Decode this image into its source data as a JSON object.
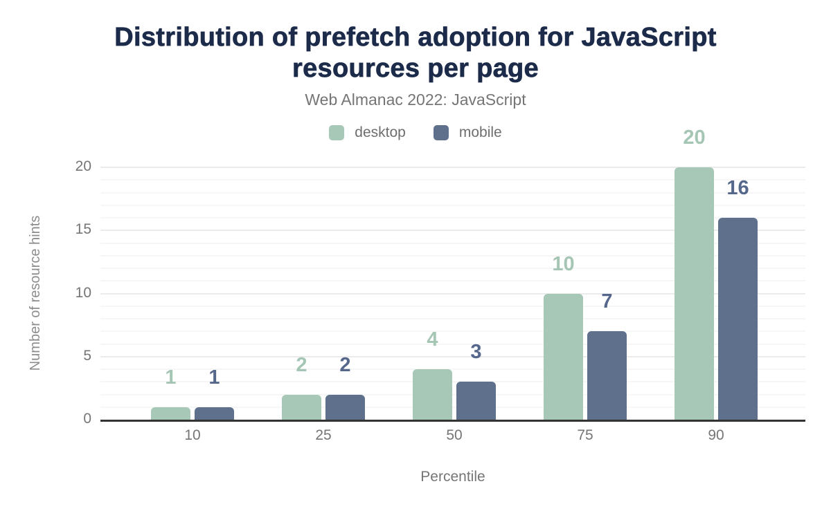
{
  "title": "Distribution of prefetch adoption for JavaScript resources per page",
  "title_lines": [
    "Distribution of prefetch adoption for JavaScript",
    "resources per page"
  ],
  "subtitle": "Web Almanac 2022: JavaScript",
  "legend": {
    "items": [
      {
        "label": "desktop",
        "color": "#a7c8b6"
      },
      {
        "label": "mobile",
        "color": "#5f708c"
      }
    ]
  },
  "chart_data": {
    "type": "bar",
    "title": "Distribution of prefetch adoption for JavaScript resources per page",
    "subtitle": "Web Almanac 2022: JavaScript",
    "categories": [
      "10",
      "25",
      "50",
      "75",
      "90"
    ],
    "series": [
      {
        "name": "desktop",
        "color": "#a7c8b6",
        "label_color": "#a5c6b4",
        "values": [
          1,
          2,
          4,
          10,
          20
        ]
      },
      {
        "name": "mobile",
        "color": "#5f708c",
        "label_color": "#55678b",
        "values": [
          1,
          2,
          3,
          7,
          16
        ]
      }
    ],
    "xlabel": "Percentile",
    "ylabel": "Number of resource hints",
    "ylim": [
      0,
      20
    ],
    "yticks": [
      0,
      5,
      10,
      15,
      20
    ],
    "grid": {
      "orientation": "horizontal",
      "minor_step": 1,
      "major_step": 5
    },
    "legend_position": "top",
    "bar_value_labels": true
  },
  "colors": {
    "title": "#1c2b4a",
    "subtitle": "#757575",
    "axis_text": "#757575",
    "axis_title": "#8c8c8c",
    "baseline": "#333333",
    "grid_minor": "#f6f6f6",
    "grid_major": "#ebebeb",
    "background": "#ffffff"
  }
}
